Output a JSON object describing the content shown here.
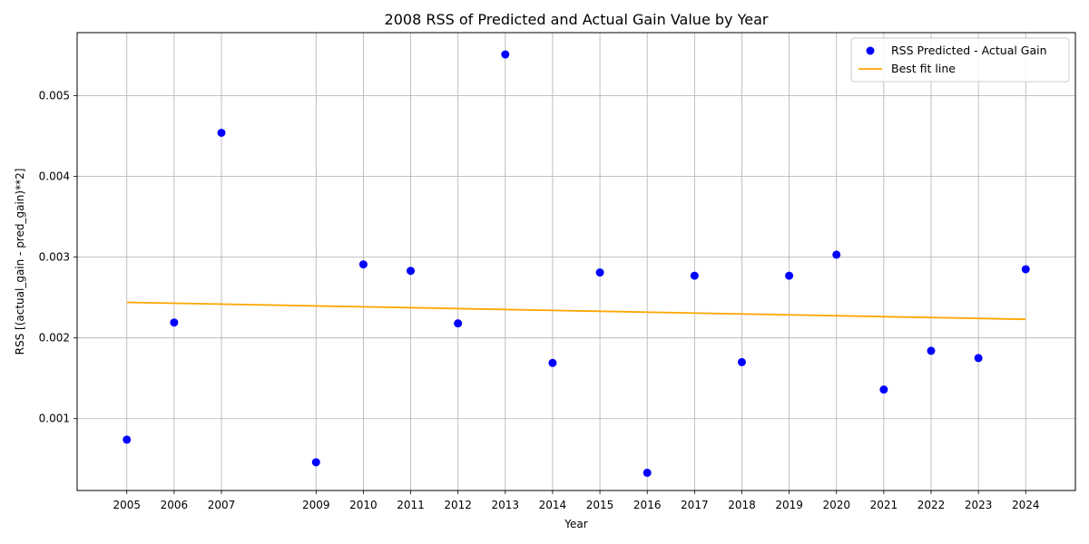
{
  "chart_data": {
    "type": "scatter",
    "title": "2008 RSS of Predicted and Actual Gain Value by Year",
    "xlabel": "Year",
    "ylabel": "RSS [(actual_gain - pred_gain)**2]",
    "xlim": [
      2003.95,
      2025.05
    ],
    "ylim": [
      0.00011,
      0.00578
    ],
    "x_ticks": [
      2005,
      2006,
      2007,
      2009,
      2010,
      2011,
      2012,
      2013,
      2014,
      2015,
      2016,
      2017,
      2018,
      2019,
      2020,
      2021,
      2022,
      2023,
      2024
    ],
    "y_ticks": [
      0.001,
      0.002,
      0.003,
      0.004,
      0.005
    ],
    "y_tick_labels": [
      "0.001",
      "0.002",
      "0.003",
      "0.004",
      "0.005"
    ],
    "grid": true,
    "legend_position": "top-right",
    "series": [
      {
        "name": "RSS Predicted - Actual Gain",
        "type": "scatter",
        "color": "#0000ff",
        "x": [
          2005,
          2006,
          2007,
          2009,
          2010,
          2011,
          2012,
          2013,
          2014,
          2015,
          2016,
          2017,
          2018,
          2019,
          2020,
          2021,
          2022,
          2023,
          2024
        ],
        "y": [
          0.00074,
          0.00219,
          0.00454,
          0.00046,
          0.00291,
          0.00283,
          0.00218,
          0.00551,
          0.00169,
          0.00281,
          0.00033,
          0.00277,
          0.0017,
          0.00277,
          0.00303,
          0.00136,
          0.00184,
          0.00175,
          0.00285
        ]
      },
      {
        "name": "Best fit line",
        "type": "line",
        "color": "#ffa500",
        "x": [
          2005,
          2024
        ],
        "y": [
          0.00244,
          0.00223
        ]
      }
    ]
  }
}
